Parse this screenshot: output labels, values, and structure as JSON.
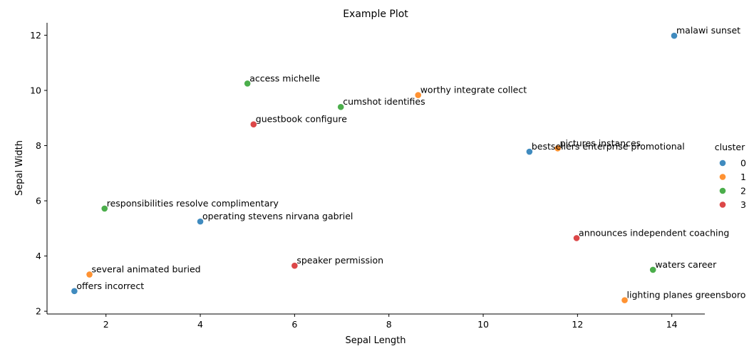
{
  "chart_data": {
    "type": "scatter",
    "title": "Example Plot",
    "xlabel": "Sepal Length",
    "ylabel": "Sepal Width",
    "xlim": [
      0.75,
      14.7
    ],
    "ylim": [
      1.9,
      12.45
    ],
    "xticks": [
      2,
      4,
      6,
      8,
      10,
      12,
      14
    ],
    "yticks": [
      2,
      4,
      6,
      8,
      10,
      12
    ],
    "grid": false,
    "legend": {
      "title": "cluster",
      "placement": "right",
      "entries": [
        {
          "label": "0",
          "color": "#1f77b4"
        },
        {
          "label": "1",
          "color": "#ff7f0e"
        },
        {
          "label": "2",
          "color": "#2ca02c"
        },
        {
          "label": "3",
          "color": "#d62728"
        }
      ]
    },
    "points": [
      {
        "x": 14.05,
        "y": 11.98,
        "cluster": 0,
        "label": "malawi sunset"
      },
      {
        "x": 5.0,
        "y": 10.25,
        "cluster": 2,
        "label": "access michelle"
      },
      {
        "x": 8.62,
        "y": 9.83,
        "cluster": 1,
        "label": "worthy integrate collect"
      },
      {
        "x": 6.98,
        "y": 9.4,
        "cluster": 2,
        "label": "cumshot identifies"
      },
      {
        "x": 5.13,
        "y": 8.77,
        "cluster": 3,
        "label": "guestbook configure"
      },
      {
        "x": 11.58,
        "y": 7.9,
        "cluster": 1,
        "label": "pictures instances"
      },
      {
        "x": 10.98,
        "y": 7.78,
        "cluster": 0,
        "label": "bestsellers enterprise promotional"
      },
      {
        "x": 1.97,
        "y": 5.72,
        "cluster": 2,
        "label": "responsibilities resolve complimentary"
      },
      {
        "x": 4.0,
        "y": 5.25,
        "cluster": 0,
        "label": "operating stevens nirvana gabriel"
      },
      {
        "x": 11.98,
        "y": 4.65,
        "cluster": 3,
        "label": "announces independent coaching"
      },
      {
        "x": 6.0,
        "y": 3.65,
        "cluster": 3,
        "label": "speaker permission"
      },
      {
        "x": 13.6,
        "y": 3.5,
        "cluster": 2,
        "label": "waters career"
      },
      {
        "x": 1.65,
        "y": 3.33,
        "cluster": 1,
        "label": "several animated buried"
      },
      {
        "x": 1.33,
        "y": 2.73,
        "cluster": 0,
        "label": "offers incorrect"
      },
      {
        "x": 13.0,
        "y": 2.4,
        "cluster": 1,
        "label": "lighting planes greensboro"
      }
    ]
  }
}
